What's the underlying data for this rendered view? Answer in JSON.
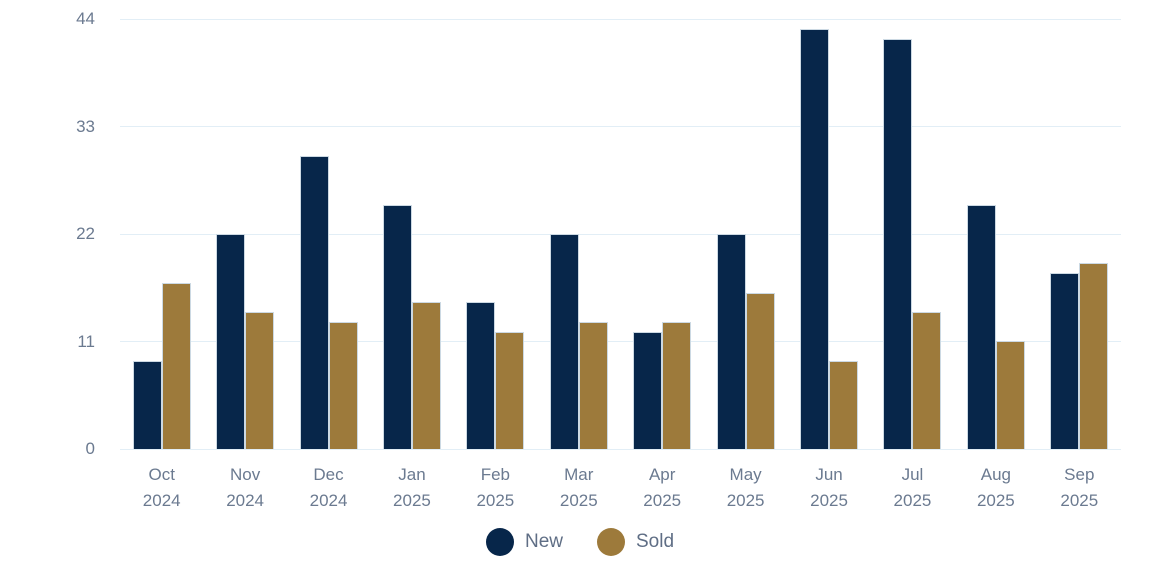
{
  "chart_data": {
    "type": "bar",
    "title": "",
    "xlabel": "",
    "ylabel": "",
    "grid": true,
    "legend_position": "bottom",
    "y_axis": {
      "min": 0,
      "max": 44,
      "ticks": [
        0,
        11,
        22,
        33,
        44
      ]
    },
    "categories": [
      {
        "month": "Oct",
        "year": "2024"
      },
      {
        "month": "Nov",
        "year": "2024"
      },
      {
        "month": "Dec",
        "year": "2024"
      },
      {
        "month": "Jan",
        "year": "2025"
      },
      {
        "month": "Feb",
        "year": "2025"
      },
      {
        "month": "Mar",
        "year": "2025"
      },
      {
        "month": "Apr",
        "year": "2025"
      },
      {
        "month": "May",
        "year": "2025"
      },
      {
        "month": "Jun",
        "year": "2025"
      },
      {
        "month": "Jul",
        "year": "2025"
      },
      {
        "month": "Aug",
        "year": "2025"
      },
      {
        "month": "Sep",
        "year": "2025"
      }
    ],
    "series": [
      {
        "name": "New",
        "color": "#07264a",
        "values": [
          9,
          22,
          30,
          25,
          15,
          22,
          12,
          22,
          43,
          42,
          25,
          18
        ]
      },
      {
        "name": "Sold",
        "color": "#9d7a3b",
        "values": [
          17,
          14,
          13,
          15,
          12,
          13,
          13,
          16,
          9,
          14,
          11,
          19
        ]
      }
    ]
  },
  "legend": {
    "new_label": "New",
    "sold_label": "Sold"
  },
  "colors": {
    "axis_text": "#6b7a90",
    "legend_text": "#5f6e85",
    "gridline": "#e2eef6",
    "bar_stroke": "#ccd9e3",
    "background": "#ffffff"
  }
}
